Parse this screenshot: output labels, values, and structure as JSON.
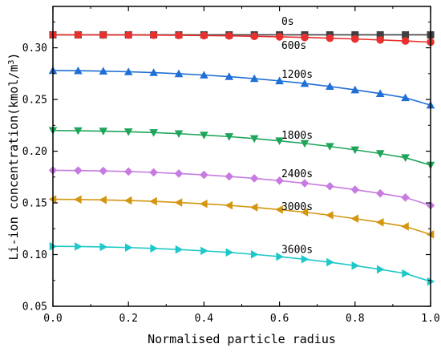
{
  "chart_data": {
    "type": "line",
    "xlabel": "Normalised particle radius",
    "ylabel_main": "Li-ion concentration(kmol/m",
    "ylabel_sup": "3",
    "ylabel_end": ")",
    "xlim": [
      0.0,
      1.0
    ],
    "ylim": [
      0.05,
      0.34
    ],
    "xticks": [
      0.0,
      0.2,
      0.4,
      0.6,
      0.8,
      1.0
    ],
    "xtick_labels": [
      "0.0",
      "0.2",
      "0.4",
      "0.6",
      "0.8",
      "1.0"
    ],
    "yticks": [
      0.05,
      0.1,
      0.15,
      0.2,
      0.25,
      0.3
    ],
    "ytick_labels": [
      "0.05",
      "0.10",
      "0.15",
      "0.20",
      "0.25",
      "0.30"
    ],
    "grid": false,
    "x": [
      0.0,
      0.0667,
      0.1333,
      0.2,
      0.2667,
      0.3333,
      0.4,
      0.4667,
      0.5333,
      0.6,
      0.6667,
      0.7333,
      0.8,
      0.8667,
      0.9333,
      1.0
    ],
    "series": [
      {
        "label": "0s",
        "color": "#404040",
        "marker": "square",
        "values": [
          0.3125,
          0.3125,
          0.3125,
          0.3125,
          0.3125,
          0.3125,
          0.3125,
          0.3125,
          0.3125,
          0.3125,
          0.3125,
          0.3125,
          0.3125,
          0.3125,
          0.3125,
          0.3125
        ]
      },
      {
        "label": "600s",
        "color": "#e8312f",
        "marker": "circle",
        "values": [
          0.3125,
          0.3125,
          0.3124,
          0.3123,
          0.3122,
          0.312,
          0.3118,
          0.3115,
          0.3111,
          0.3106,
          0.31,
          0.3093,
          0.3085,
          0.3076,
          0.3066,
          0.3055
        ]
      },
      {
        "label": "1200s",
        "color": "#1f6fd6",
        "marker": "triangle-up",
        "values": [
          0.278,
          0.2778,
          0.2774,
          0.2768,
          0.276,
          0.2749,
          0.2736,
          0.2721,
          0.2702,
          0.268,
          0.2655,
          0.2626,
          0.2593,
          0.2557,
          0.2517,
          0.2445
        ]
      },
      {
        "label": "1800s",
        "color": "#1ea55a",
        "marker": "triangle-down",
        "values": [
          0.22,
          0.2198,
          0.2194,
          0.2188,
          0.218,
          0.2169,
          0.2156,
          0.2141,
          0.2122,
          0.21,
          0.2075,
          0.2046,
          0.2013,
          0.1977,
          0.1937,
          0.1865
        ]
      },
      {
        "label": "2400s",
        "color": "#c77be0",
        "marker": "diamond",
        "values": [
          0.1815,
          0.1813,
          0.1809,
          0.1803,
          0.1795,
          0.1784,
          0.1771,
          0.1756,
          0.1737,
          0.1715,
          0.169,
          0.1661,
          0.1628,
          0.1592,
          0.1552,
          0.1475
        ]
      },
      {
        "label": "3000s",
        "color": "#d4960f",
        "marker": "triangle-left",
        "values": [
          0.1535,
          0.1533,
          0.1529,
          0.1523,
          0.1515,
          0.1504,
          0.1491,
          0.1476,
          0.1457,
          0.1435,
          0.141,
          0.1381,
          0.1348,
          0.1312,
          0.1272,
          0.1195
        ]
      },
      {
        "label": "3600s",
        "color": "#1ec8c8",
        "marker": "triangle-right",
        "values": [
          0.108,
          0.1078,
          0.1074,
          0.1068,
          0.106,
          0.1049,
          0.1036,
          0.1021,
          0.1002,
          0.098,
          0.0955,
          0.0926,
          0.0893,
          0.0857,
          0.0817,
          0.074
        ]
      }
    ],
    "annotations": [
      {
        "text": "0s",
        "x": 0.605,
        "y": 0.322
      },
      {
        "text": "600s",
        "x": 0.605,
        "y": 0.299
      },
      {
        "text": "1200s",
        "x": 0.605,
        "y": 0.271
      },
      {
        "text": "1800s",
        "x": 0.605,
        "y": 0.212
      },
      {
        "text": "2400s",
        "x": 0.605,
        "y": 0.175
      },
      {
        "text": "3000s",
        "x": 0.605,
        "y": 0.143
      },
      {
        "text": "3600s",
        "x": 0.605,
        "y": 0.1015
      }
    ]
  }
}
